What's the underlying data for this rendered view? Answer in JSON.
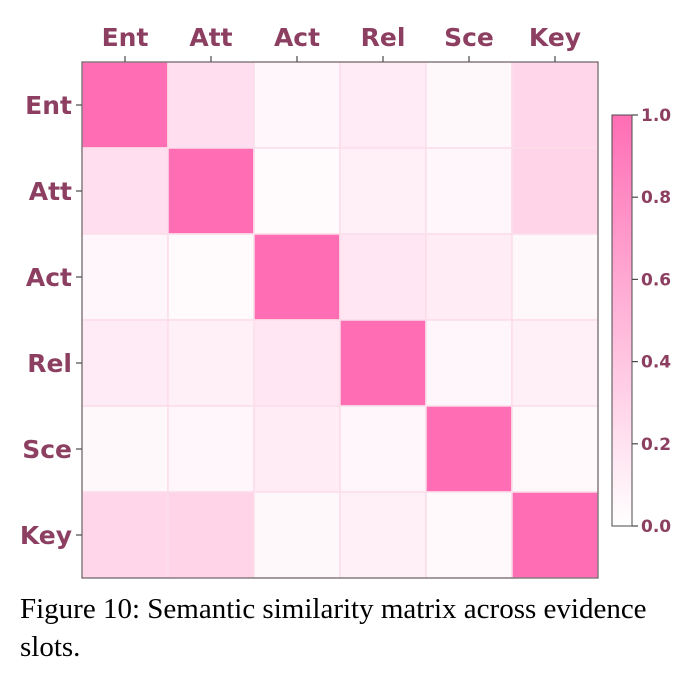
{
  "chart_data": {
    "type": "heatmap",
    "x_categories": [
      "Ent",
      "Att",
      "Act",
      "Rel",
      "Sce",
      "Key"
    ],
    "y_categories": [
      "Ent",
      "Att",
      "Act",
      "Rel",
      "Sce",
      "Key"
    ],
    "values": [
      [
        1.0,
        0.22,
        0.06,
        0.14,
        0.05,
        0.28
      ],
      [
        0.22,
        1.0,
        0.03,
        0.11,
        0.06,
        0.3
      ],
      [
        0.06,
        0.03,
        1.0,
        0.17,
        0.13,
        0.05
      ],
      [
        0.14,
        0.11,
        0.17,
        1.0,
        0.06,
        0.11
      ],
      [
        0.05,
        0.06,
        0.13,
        0.06,
        1.0,
        0.04
      ],
      [
        0.28,
        0.3,
        0.05,
        0.11,
        0.04,
        1.0
      ]
    ],
    "colorbar": {
      "range": [
        0.0,
        1.0
      ],
      "ticks": [
        "0.0",
        "0.2",
        "0.4",
        "0.6",
        "0.8",
        "1.0"
      ],
      "colors": {
        "low": "#ffffff",
        "high": "#ff6eb4"
      }
    },
    "label_color": "#8c3f60",
    "xlabel": "",
    "ylabel": ""
  },
  "caption": "Figure 10: Semantic similarity matrix across evidence slots."
}
